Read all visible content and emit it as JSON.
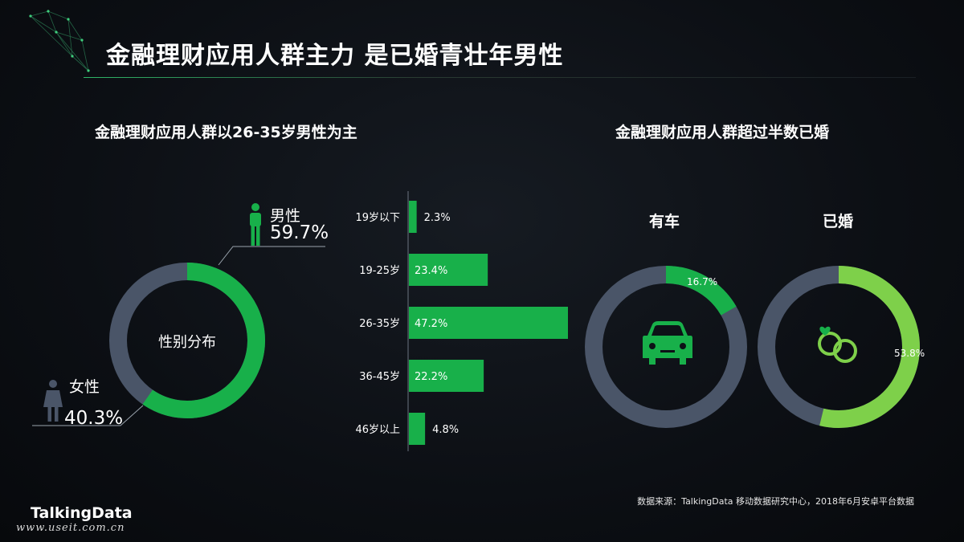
{
  "header": {
    "title": "金融理财应用人群主力 是已婚青壮年男性"
  },
  "left_section": {
    "subtitle": "金融理财应用人群以26-35岁男性为主",
    "donut_center_label": "性别分布",
    "male": {
      "label": "男性",
      "value": "59.7%"
    },
    "female": {
      "label": "女性",
      "value": "40.3%"
    }
  },
  "right_section": {
    "subtitle": "金融理财应用人群超过半数已婚",
    "car": {
      "label": "有车",
      "value": "16.7%"
    },
    "married": {
      "label": "已婚",
      "value": "53.8%"
    }
  },
  "footer": {
    "source": "数据来源：TalkingData 移动数据研究中心，2018年6月安卓平台数据",
    "brand": "TalkingData",
    "watermark": "www.useit.com.cn"
  },
  "colors": {
    "green": "#18b04a",
    "light_green": "#7ed04a",
    "slate": "#4a5568",
    "background": "#0b0e13"
  },
  "icons": [
    "male-icon",
    "female-icon",
    "car-icon",
    "rings-icon",
    "network-decoration"
  ],
  "chart_data": [
    {
      "type": "pie",
      "subtype": "donut",
      "title": "金融理财应用人群以26-35岁男性为主",
      "center_label": "性别分布",
      "categories": [
        "男性",
        "女性"
      ],
      "values": [
        59.7,
        40.3
      ],
      "value_labels": [
        "59.7%",
        "40.3%"
      ]
    },
    {
      "type": "bar",
      "orientation": "horizontal",
      "categories": [
        "19岁以下",
        "19-25岁",
        "26-35岁",
        "36-45岁",
        "46岁以上"
      ],
      "values": [
        2.3,
        23.4,
        47.2,
        22.2,
        4.8
      ],
      "value_labels": [
        "2.3%",
        "23.4%",
        "47.2%",
        "22.2%",
        "4.8%"
      ],
      "xlim": [
        0,
        47.2
      ]
    },
    {
      "type": "pie",
      "subtype": "donut",
      "title": "有车",
      "categories": [
        "有车"
      ],
      "values": [
        16.7
      ],
      "value_labels": [
        "16.7%"
      ]
    },
    {
      "type": "pie",
      "subtype": "donut",
      "title": "已婚",
      "categories": [
        "已婚"
      ],
      "values": [
        53.8
      ],
      "value_labels": [
        "53.8%"
      ]
    }
  ]
}
